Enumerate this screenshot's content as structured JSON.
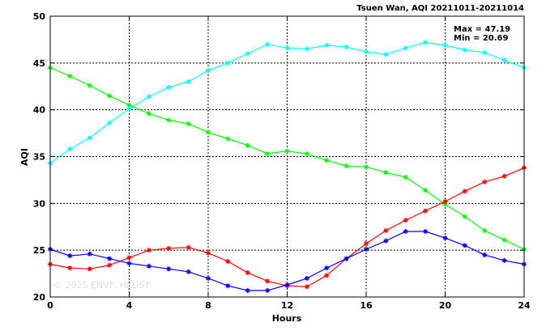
{
  "chart_data": {
    "type": "line",
    "title": "Tsuen Wan, AQI 20211011-20211014",
    "xlabel": "Hours",
    "ylabel": "AQI",
    "xlim": [
      0,
      24
    ],
    "ylim": [
      20,
      50
    ],
    "xticks": [
      0,
      4,
      8,
      12,
      16,
      20,
      24
    ],
    "yticks": [
      20,
      25,
      30,
      35,
      40,
      45,
      50
    ],
    "grid": true,
    "stats": {
      "max": "Max = 47.19",
      "min": "Min = 20.69"
    },
    "watermark": "© 2025 ENVF, HKUST",
    "x": [
      0,
      1,
      2,
      3,
      4,
      5,
      6,
      7,
      8,
      9,
      10,
      11,
      12,
      13,
      14,
      15,
      16,
      17,
      18,
      19,
      20,
      21,
      22,
      23,
      24
    ],
    "series": [
      {
        "color": "#00ffff",
        "values": [
          34.3,
          35.8,
          37.0,
          38.6,
          40.1,
          41.4,
          42.4,
          43.0,
          44.2,
          45.0,
          46.0,
          47.0,
          46.6,
          46.5,
          46.9,
          46.7,
          46.2,
          45.9,
          46.6,
          47.19,
          46.9,
          46.4,
          46.1,
          45.3,
          44.5
        ]
      },
      {
        "color": "#00ff00",
        "values": [
          44.5,
          43.6,
          42.6,
          41.5,
          40.5,
          39.6,
          38.9,
          38.5,
          37.6,
          36.9,
          36.2,
          35.3,
          35.6,
          35.3,
          34.6,
          34.0,
          33.9,
          33.3,
          32.8,
          31.4,
          29.9,
          28.6,
          27.1,
          26.1,
          25.1
        ]
      },
      {
        "color": "#ff0000",
        "values": [
          23.5,
          23.1,
          23.0,
          23.4,
          24.2,
          25.0,
          25.2,
          25.3,
          24.7,
          23.8,
          22.6,
          21.7,
          21.2,
          21.1,
          22.3,
          24.1,
          25.7,
          27.1,
          28.2,
          29.2,
          30.2,
          31.3,
          32.3,
          32.9,
          33.8
        ]
      },
      {
        "color": "#0000ff",
        "values": [
          25.1,
          24.4,
          24.6,
          24.1,
          23.6,
          23.3,
          23.0,
          22.7,
          22.0,
          21.2,
          20.69,
          20.7,
          21.3,
          22.0,
          23.1,
          24.1,
          25.1,
          26.0,
          27.0,
          27.0,
          26.3,
          25.5,
          24.5,
          23.9,
          23.5
        ]
      }
    ]
  }
}
